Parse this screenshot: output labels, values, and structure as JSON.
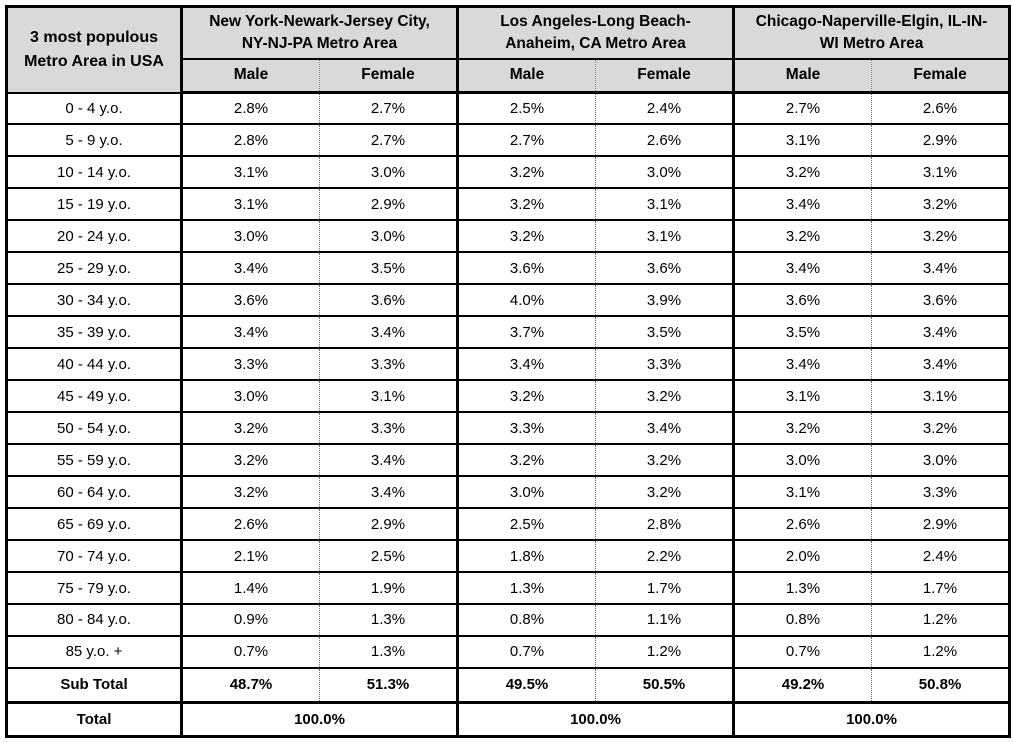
{
  "colors": {
    "header_bg": "#d9d9d9",
    "border": "#000000",
    "cell_bg": "#ffffff",
    "text": "#000000"
  },
  "table": {
    "corner": {
      "line1": "3 most populous",
      "line2": "Metro Area in USA"
    },
    "groups": [
      {
        "line1": "New York-Newark-Jersey City,",
        "line2": "NY-NJ-PA Metro Area"
      },
      {
        "line1": "Los Angeles-Long Beach-",
        "line2": "Anaheim, CA Metro Area"
      },
      {
        "line1": "Chicago-Naperville-Elgin, IL-IN-",
        "line2": "WI Metro Area"
      }
    ],
    "sub_headers": [
      "Male",
      "Female"
    ],
    "rows": [
      {
        "age": "0 - 4 y.o.",
        "values": [
          "2.8%",
          "2.7%",
          "2.5%",
          "2.4%",
          "2.7%",
          "2.6%"
        ]
      },
      {
        "age": "5 - 9 y.o.",
        "values": [
          "2.8%",
          "2.7%",
          "2.7%",
          "2.6%",
          "3.1%",
          "2.9%"
        ]
      },
      {
        "age": "10 - 14 y.o.",
        "values": [
          "3.1%",
          "3.0%",
          "3.2%",
          "3.0%",
          "3.2%",
          "3.1%"
        ]
      },
      {
        "age": "15 - 19 y.o.",
        "values": [
          "3.1%",
          "2.9%",
          "3.2%",
          "3.1%",
          "3.4%",
          "3.2%"
        ]
      },
      {
        "age": "20 - 24 y.o.",
        "values": [
          "3.0%",
          "3.0%",
          "3.2%",
          "3.1%",
          "3.2%",
          "3.2%"
        ]
      },
      {
        "age": "25 - 29 y.o.",
        "values": [
          "3.4%",
          "3.5%",
          "3.6%",
          "3.6%",
          "3.4%",
          "3.4%"
        ]
      },
      {
        "age": "30 - 34 y.o.",
        "values": [
          "3.6%",
          "3.6%",
          "4.0%",
          "3.9%",
          "3.6%",
          "3.6%"
        ]
      },
      {
        "age": "35 - 39 y.o.",
        "values": [
          "3.4%",
          "3.4%",
          "3.7%",
          "3.5%",
          "3.5%",
          "3.4%"
        ]
      },
      {
        "age": "40 - 44 y.o.",
        "values": [
          "3.3%",
          "3.3%",
          "3.4%",
          "3.3%",
          "3.4%",
          "3.4%"
        ]
      },
      {
        "age": "45 - 49 y.o.",
        "values": [
          "3.0%",
          "3.1%",
          "3.2%",
          "3.2%",
          "3.1%",
          "3.1%"
        ]
      },
      {
        "age": "50 - 54 y.o.",
        "values": [
          "3.2%",
          "3.3%",
          "3.3%",
          "3.4%",
          "3.2%",
          "3.2%"
        ]
      },
      {
        "age": "55 - 59 y.o.",
        "values": [
          "3.2%",
          "3.4%",
          "3.2%",
          "3.2%",
          "3.0%",
          "3.0%"
        ]
      },
      {
        "age": "60 - 64 y.o.",
        "values": [
          "3.2%",
          "3.4%",
          "3.0%",
          "3.2%",
          "3.1%",
          "3.3%"
        ]
      },
      {
        "age": "65 - 69 y.o.",
        "values": [
          "2.6%",
          "2.9%",
          "2.5%",
          "2.8%",
          "2.6%",
          "2.9%"
        ]
      },
      {
        "age": "70 - 74 y.o.",
        "values": [
          "2.1%",
          "2.5%",
          "1.8%",
          "2.2%",
          "2.0%",
          "2.4%"
        ]
      },
      {
        "age": "75 - 79 y.o.",
        "values": [
          "1.4%",
          "1.9%",
          "1.3%",
          "1.7%",
          "1.3%",
          "1.7%"
        ]
      },
      {
        "age": "80 - 84 y.o.",
        "values": [
          "0.9%",
          "1.3%",
          "0.8%",
          "1.1%",
          "0.8%",
          "1.2%"
        ]
      },
      {
        "age": "85 y.o. +",
        "values": [
          "0.7%",
          "1.3%",
          "0.7%",
          "1.2%",
          "0.7%",
          "1.2%"
        ]
      }
    ],
    "subtotal": {
      "label": "Sub Total",
      "values": [
        "48.7%",
        "51.3%",
        "49.5%",
        "50.5%",
        "49.2%",
        "50.8%"
      ]
    },
    "total": {
      "label": "Total",
      "values": [
        "100.0%",
        "100.0%",
        "100.0%"
      ]
    }
  },
  "chart_data": {
    "type": "table",
    "title": "3 most populous Metro Area in USA",
    "categories": [
      "0 - 4 y.o.",
      "5 - 9 y.o.",
      "10 - 14 y.o.",
      "15 - 19 y.o.",
      "20 - 24 y.o.",
      "25 - 29 y.o.",
      "30 - 34 y.o.",
      "35 - 39 y.o.",
      "40 - 44 y.o.",
      "45 - 49 y.o.",
      "50 - 54 y.o.",
      "55 - 59 y.o.",
      "60 - 64 y.o.",
      "65 - 69 y.o.",
      "70 - 74 y.o.",
      "75 - 79 y.o.",
      "80 - 84 y.o.",
      "85 y.o. +"
    ],
    "unit": "percent",
    "series": [
      {
        "name": "New York-Newark-Jersey City, NY-NJ-PA Metro Area — Male",
        "values": [
          2.8,
          2.8,
          3.1,
          3.1,
          3.0,
          3.4,
          3.6,
          3.4,
          3.3,
          3.0,
          3.2,
          3.2,
          3.2,
          2.6,
          2.1,
          1.4,
          0.9,
          0.7
        ],
        "subtotal": 48.7
      },
      {
        "name": "New York-Newark-Jersey City, NY-NJ-PA Metro Area — Female",
        "values": [
          2.7,
          2.7,
          3.0,
          2.9,
          3.0,
          3.5,
          3.6,
          3.4,
          3.3,
          3.1,
          3.3,
          3.4,
          3.4,
          2.9,
          2.5,
          1.9,
          1.3,
          1.3
        ],
        "subtotal": 51.3
      },
      {
        "name": "Los Angeles-Long Beach-Anaheim, CA Metro Area — Male",
        "values": [
          2.5,
          2.7,
          3.2,
          3.2,
          3.2,
          3.6,
          4.0,
          3.7,
          3.4,
          3.2,
          3.3,
          3.2,
          3.0,
          2.5,
          1.8,
          1.3,
          0.8,
          0.7
        ],
        "subtotal": 49.5
      },
      {
        "name": "Los Angeles-Long Beach-Anaheim, CA Metro Area — Female",
        "values": [
          2.4,
          2.6,
          3.0,
          3.1,
          3.1,
          3.6,
          3.9,
          3.5,
          3.3,
          3.2,
          3.4,
          3.2,
          3.2,
          2.8,
          2.2,
          1.7,
          1.1,
          1.2
        ],
        "subtotal": 50.5
      },
      {
        "name": "Chicago-Naperville-Elgin, IL-IN-WI Metro Area — Male",
        "values": [
          2.7,
          3.1,
          3.2,
          3.4,
          3.2,
          3.4,
          3.6,
          3.5,
          3.4,
          3.1,
          3.2,
          3.0,
          3.1,
          2.6,
          2.0,
          1.3,
          0.8,
          0.7
        ],
        "subtotal": 49.2
      },
      {
        "name": "Chicago-Naperville-Elgin, IL-IN-WI Metro Area — Female",
        "values": [
          2.6,
          2.9,
          3.1,
          3.2,
          3.2,
          3.4,
          3.6,
          3.4,
          3.4,
          3.1,
          3.2,
          3.0,
          3.3,
          2.9,
          2.4,
          1.7,
          1.2,
          1.2
        ],
        "subtotal": 50.8
      }
    ],
    "totals_per_metro": [
      100.0,
      100.0,
      100.0
    ]
  }
}
